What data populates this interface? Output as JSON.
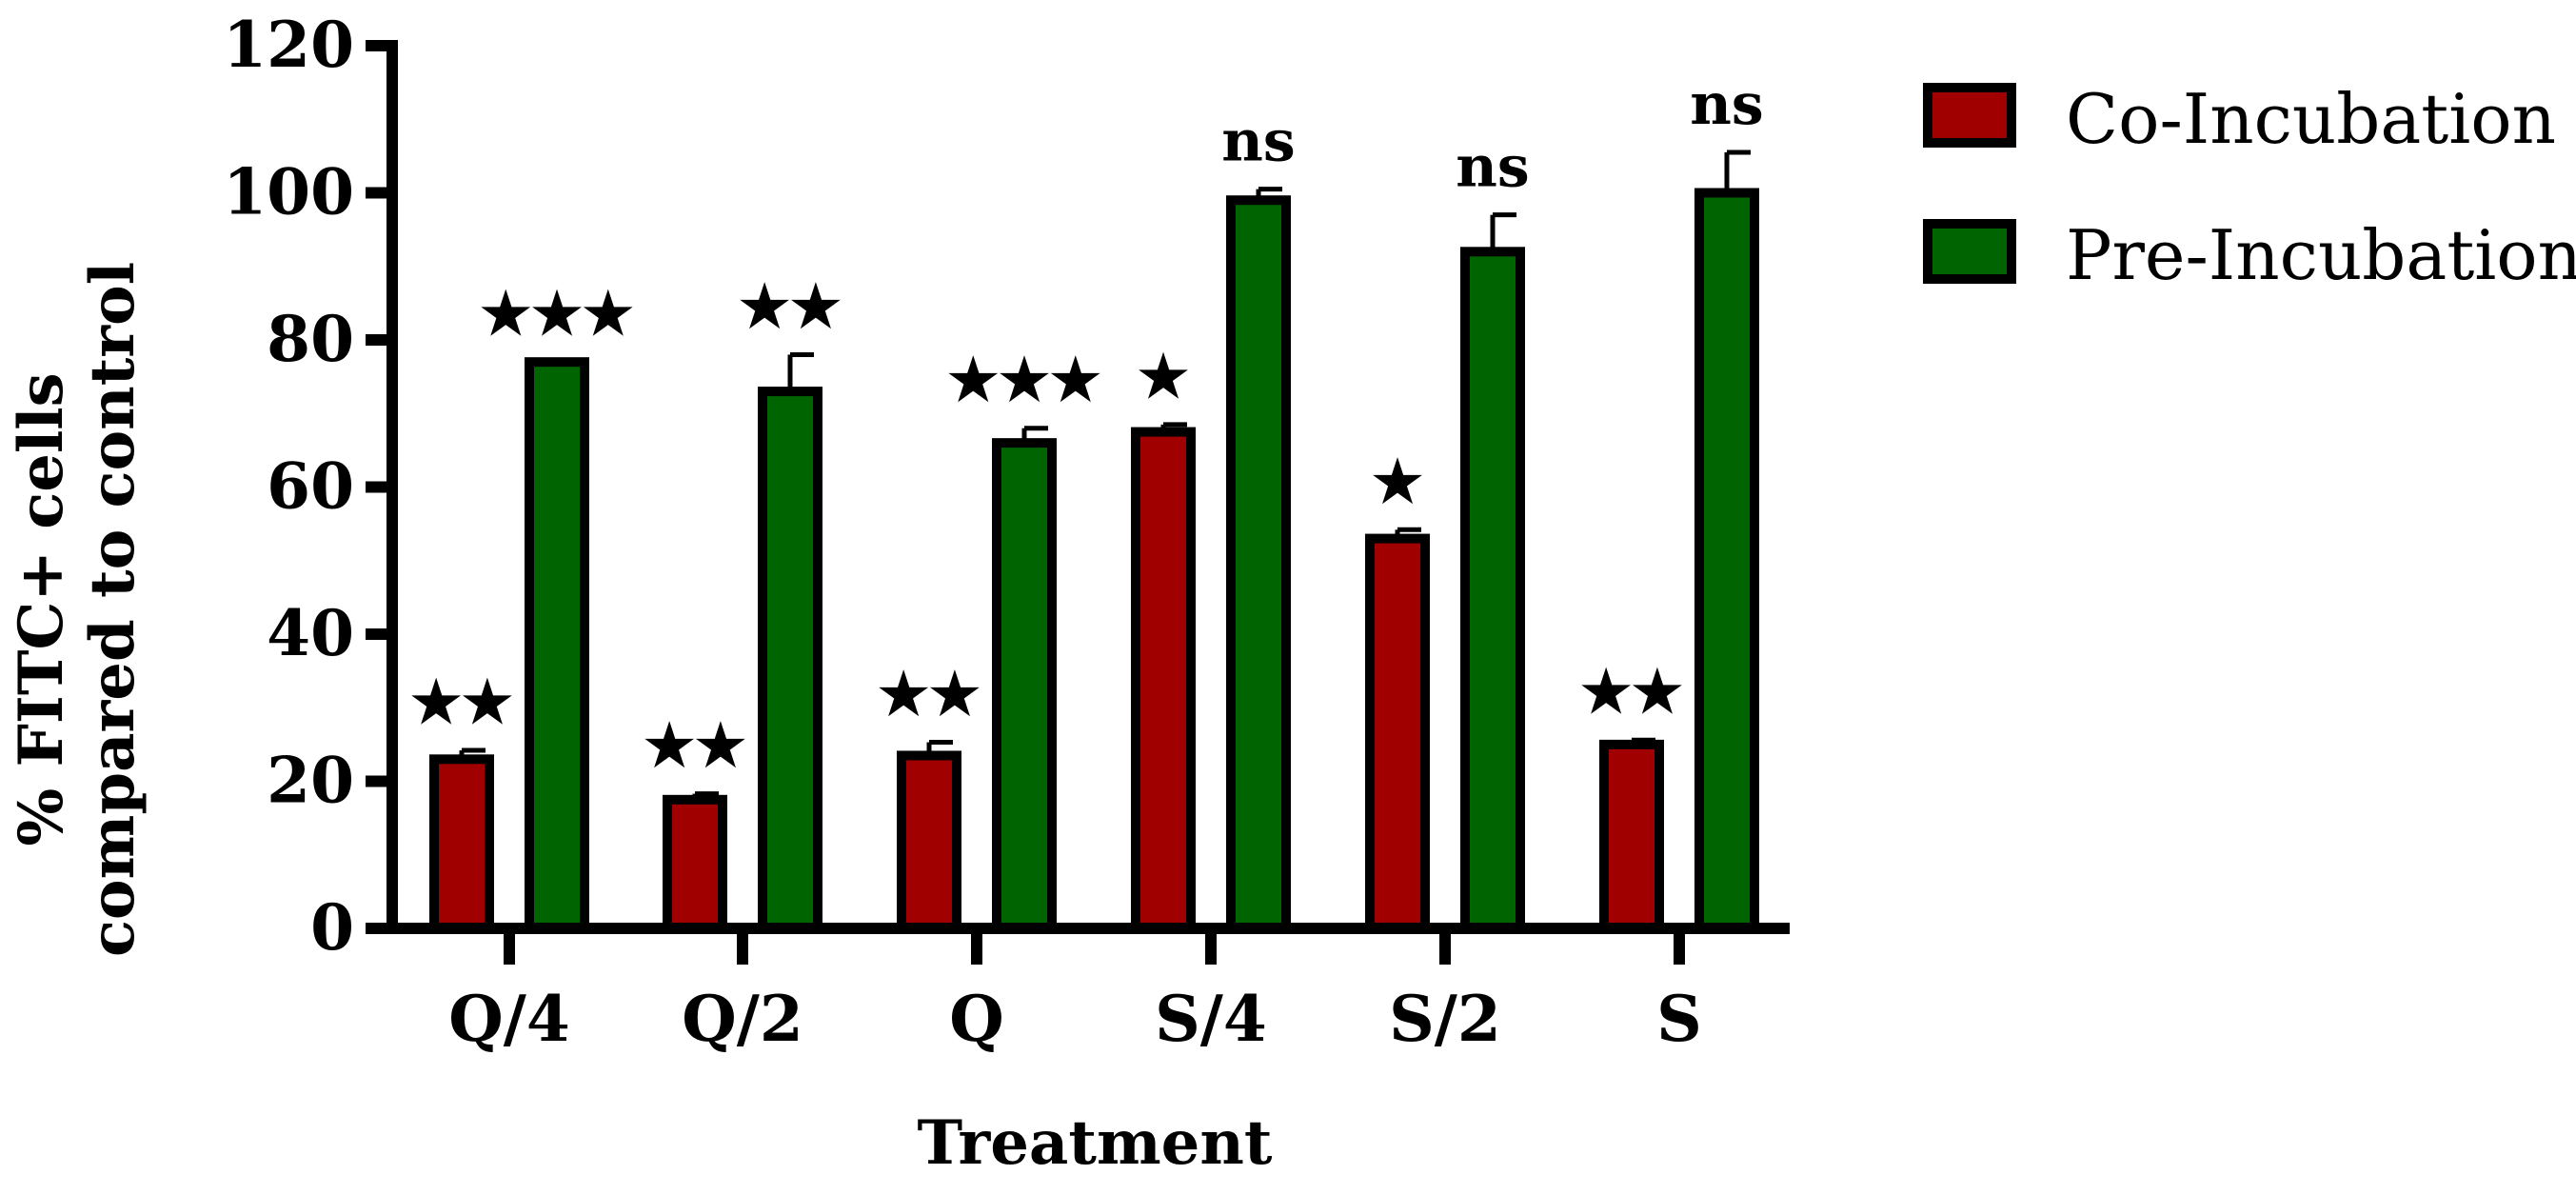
{
  "chart_data": {
    "type": "bar",
    "title": "",
    "xlabel": "Treatment",
    "ylabel_line1": "% FITC+ cells",
    "ylabel_line2": "compared to control",
    "ylim": [
      0,
      120
    ],
    "yticks": [
      0,
      20,
      40,
      60,
      80,
      100,
      120
    ],
    "ytick_labels": [
      "0",
      "20",
      "40",
      "60",
      "80",
      "100",
      "120"
    ],
    "categories": [
      "Q/4",
      "Q/2",
      "Q",
      "S/4",
      "S/2",
      "S"
    ],
    "series": [
      {
        "name": "Co-Incubation",
        "color": "#a00000",
        "values": [
          23,
          17.5,
          23.5,
          67.5,
          53,
          25
        ],
        "errors": [
          1.2,
          0.8,
          1.8,
          1.0,
          1.2,
          0.6
        ],
        "significance": [
          "★★",
          "★★",
          "★★",
          "★",
          "★",
          "★★"
        ]
      },
      {
        "name": "Pre-Incubation",
        "color": "#006400",
        "values": [
          77,
          73,
          66,
          99,
          92,
          100
        ],
        "errors": [
          0,
          5,
          2,
          1.5,
          5,
          5.5
        ],
        "significance": [
          "★★★",
          "★★",
          "★★★",
          "ns",
          "ns",
          "ns"
        ]
      }
    ],
    "legend_position": "top-right"
  }
}
